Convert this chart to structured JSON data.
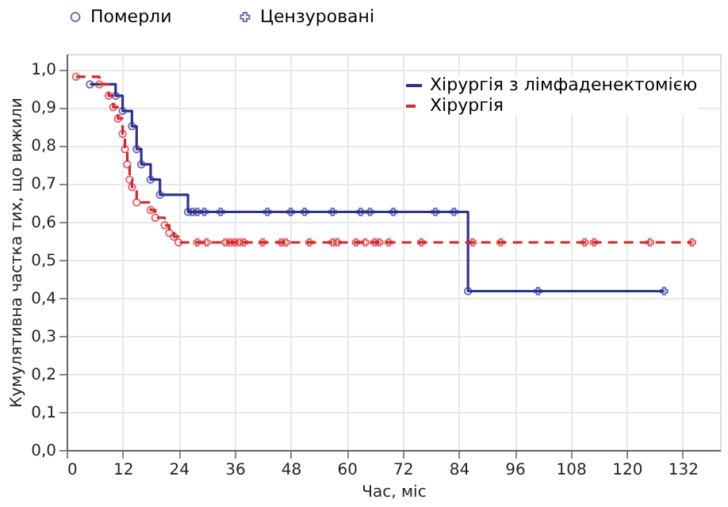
{
  "chart_data": {
    "type": "step",
    "xlabel": "Час, міс",
    "ylabel": "Кумулятивна частка тих, що вижили",
    "xlim": [
      0,
      140
    ],
    "xticks": [
      0,
      12,
      24,
      36,
      48,
      60,
      72,
      84,
      96,
      108,
      120,
      132
    ],
    "ylim": [
      0,
      1.04
    ],
    "yticks": [
      {
        "value": 0,
        "label": "0,0"
      },
      {
        "value": 0.1,
        "label": "0,1"
      },
      {
        "value": 0.2,
        "label": "0,2"
      },
      {
        "value": 0.3,
        "label": "0,3"
      },
      {
        "value": 0.4,
        "label": "0,4"
      },
      {
        "value": 0.5,
        "label": "0,5"
      },
      {
        "value": 0.6,
        "label": "0,6"
      },
      {
        "value": 0.7,
        "label": "0,7"
      },
      {
        "value": 0.8,
        "label": "0,8"
      },
      {
        "value": 0.9,
        "label": "0,9"
      },
      {
        "value": 1.0,
        "label": "1,0"
      }
    ],
    "grid": true,
    "legend": "top right",
    "series": [
      {
        "name": "Хірургія з лімфаденектомією",
        "color": "#2e3192",
        "line_style": "solid",
        "x": [
          5,
          10.5,
          12,
          14,
          15,
          16,
          18,
          20,
          26,
          86,
          128
        ],
        "values": [
          0.96,
          0.93,
          0.89,
          0.85,
          0.79,
          0.75,
          0.71,
          0.67,
          0.625,
          0.417,
          0.417
        ]
      },
      {
        "name": "Хірургія",
        "color": "#d7262e",
        "line_style": "dashed",
        "x": [
          2,
          7,
          9,
          10,
          11,
          12,
          12.5,
          13,
          13.5,
          14,
          15,
          18,
          19,
          21,
          22,
          23,
          24,
          134
        ],
        "values": [
          0.98,
          0.96,
          0.93,
          0.9,
          0.87,
          0.83,
          0.79,
          0.75,
          0.71,
          0.69,
          0.65,
          0.63,
          0.61,
          0.59,
          0.57,
          0.56,
          0.545,
          0.545
        ]
      },
      {
        "name": "Померли",
        "type": "scatter",
        "marker": "circle",
        "x": [
          5,
          10.5,
          12,
          14,
          15,
          16,
          18,
          20,
          26,
          86,
          2,
          7,
          9,
          10,
          11,
          12,
          12.5,
          13,
          13.5,
          14,
          15,
          18,
          19,
          21,
          22,
          23,
          24
        ],
        "values": [
          0.96,
          0.93,
          0.89,
          0.85,
          0.79,
          0.75,
          0.71,
          0.67,
          0.625,
          0.417,
          0.98,
          0.96,
          0.93,
          0.9,
          0.87,
          0.83,
          0.79,
          0.75,
          0.71,
          0.69,
          0.65,
          0.63,
          0.61,
          0.59,
          0.57,
          0.56,
          0.545
        ],
        "colors": [
          "#2e3192",
          "#2e3192",
          "#2e3192",
          "#2e3192",
          "#2e3192",
          "#2e3192",
          "#2e3192",
          "#2e3192",
          "#2e3192",
          "#2e3192",
          "#d7262e",
          "#d7262e",
          "#d7262e",
          "#d7262e",
          "#d7262e",
          "#d7262e",
          "#d7262e",
          "#d7262e",
          "#d7262e",
          "#d7262e",
          "#d7262e",
          "#d7262e",
          "#d7262e",
          "#d7262e",
          "#d7262e",
          "#d7262e",
          "#d7262e"
        ]
      },
      {
        "name": "Цензуровані",
        "type": "scatter",
        "marker": "cross",
        "x": [
          27,
          28,
          29.5,
          33,
          43,
          48,
          51,
          57,
          63,
          65,
          70,
          79,
          83,
          101,
          128,
          28,
          30,
          34,
          35,
          36,
          37,
          38,
          42,
          46,
          47,
          52,
          57,
          58,
          62,
          64,
          66,
          67,
          69,
          76,
          87,
          93,
          111,
          113,
          125,
          134
        ],
        "values": [
          0.625,
          0.625,
          0.625,
          0.625,
          0.625,
          0.625,
          0.625,
          0.625,
          0.625,
          0.625,
          0.625,
          0.625,
          0.625,
          0.417,
          0.417,
          0.545,
          0.545,
          0.545,
          0.545,
          0.545,
          0.545,
          0.545,
          0.545,
          0.545,
          0.545,
          0.545,
          0.545,
          0.545,
          0.545,
          0.545,
          0.545,
          0.545,
          0.545,
          0.545,
          0.545,
          0.545,
          0.545,
          0.545,
          0.545,
          0.545
        ],
        "colors": [
          "#2e3192",
          "#2e3192",
          "#2e3192",
          "#2e3192",
          "#2e3192",
          "#2e3192",
          "#2e3192",
          "#2e3192",
          "#2e3192",
          "#2e3192",
          "#2e3192",
          "#2e3192",
          "#2e3192",
          "#2e3192",
          "#2e3192",
          "#d7262e",
          "#d7262e",
          "#d7262e",
          "#d7262e",
          "#d7262e",
          "#d7262e",
          "#d7262e",
          "#d7262e",
          "#d7262e",
          "#d7262e",
          "#d7262e",
          "#d7262e",
          "#d7262e",
          "#d7262e",
          "#d7262e",
          "#d7262e",
          "#d7262e",
          "#d7262e",
          "#d7262e",
          "#d7262e",
          "#d7262e",
          "#d7262e",
          "#d7262e",
          "#d7262e",
          "#d7262e"
        ]
      }
    ]
  }
}
